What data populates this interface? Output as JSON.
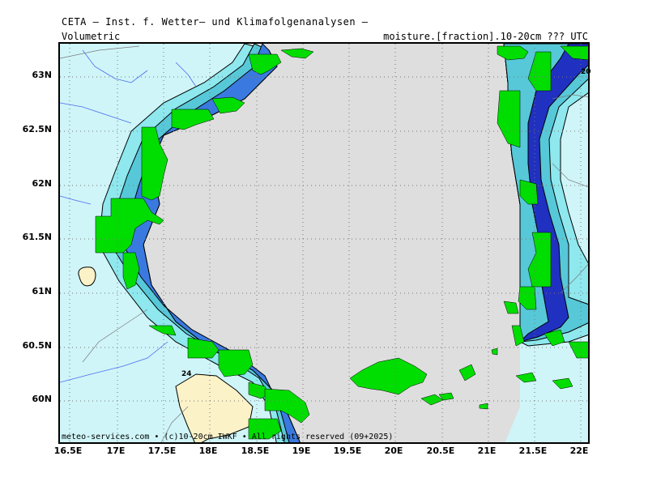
{
  "header": {
    "title": "CETA — Inst. f. Wetter— und Klimafolgenanalysen —",
    "left_label": "Volumetric",
    "right_label": "moisture.[fraction].10-20cm ??? UTC"
  },
  "map": {
    "y_ticks": [
      "63N",
      "62.5N",
      "62N",
      "61.5N",
      "61N",
      "60.5N",
      "60N"
    ],
    "x_ticks": [
      "16.5E",
      "17E",
      "17.5E",
      "18E",
      "18.5E",
      "19E",
      "19.5E",
      "20E",
      "20.5E",
      "21E",
      "21.5E",
      "22E"
    ],
    "contour_labels": [
      "24",
      "20"
    ],
    "copyright": "meteo-services.com • (c)10-20cm IWKF • All rights reserved (09+2025)",
    "colors": {
      "land_base": "#cff5f8",
      "sea": "#dedede",
      "band_1": "#8ee8ee",
      "band_2": "#57c8d8",
      "band_3": "#3a7ae0",
      "band_4": "#2030c0",
      "high_moisture": "#fbf2c8",
      "coast_green": "#00dd00",
      "rivers": "#4a6cf0",
      "borders": "#7a7a7a"
    }
  }
}
